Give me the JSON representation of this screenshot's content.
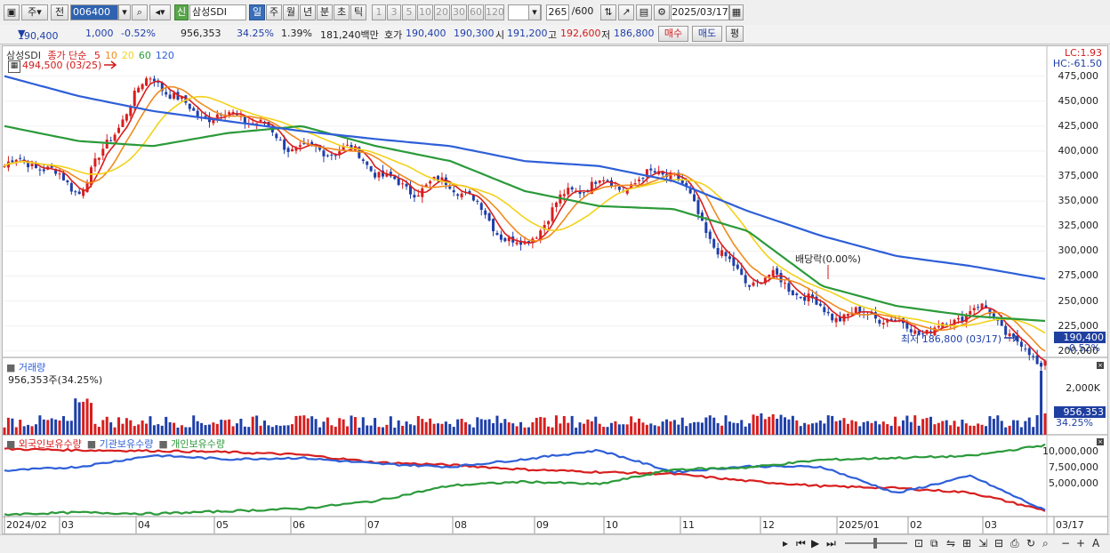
{
  "toolbar": {
    "stock_type": "주",
    "prev_label": "전",
    "code": "006400",
    "name_badge": "신",
    "stock_name": "삼성SDI",
    "periods": [
      "일",
      "주",
      "월",
      "년",
      "분",
      "초",
      "틱"
    ],
    "active_period": "일",
    "intervals": [
      "1",
      "3",
      "5",
      "10",
      "20",
      "30",
      "60",
      "120"
    ],
    "count": "265",
    "count_total": "/600",
    "date": "2025/03/17"
  },
  "quote": {
    "price": "190,400",
    "change": "1,000",
    "change_pct": "-0.52%",
    "volume": "956,353",
    "volume_ratio": "34.25%",
    "turnover_rate": "1.39%",
    "amount": "181,240백만",
    "ask_label": "호가",
    "ask1": "190,400",
    "bid1": "190,300",
    "open_label": "시",
    "open": "191,200",
    "high_label": "고",
    "high": "192,600",
    "low_label": "저",
    "low": "186,800",
    "buy_button": "매수",
    "sell_button": "매도",
    "eval_button": "평"
  },
  "price_pane": {
    "legend_name": "삼성SDI",
    "legend_price": "종가 단순",
    "ma_labels": [
      "5",
      "10",
      "20",
      "60",
      "120"
    ],
    "ma_colors": [
      "#d81e1e",
      "#f08a1e",
      "#f2d21a",
      "#2b9a3a",
      "#2e5fd8"
    ],
    "lc": "LC:1.93",
    "hc": "HC:-61.50",
    "high_marker": "494,500 (03/25)",
    "low_marker": "최저 186,800 (03/17)",
    "dividend_marker": "배당락(0.00%)",
    "current_tag": "190,400",
    "current_pct": "-0.52%",
    "y_ticks": [
      "475,000",
      "450,000",
      "425,000",
      "400,000",
      "375,000",
      "350,000",
      "325,000",
      "300,000",
      "275,000",
      "250,000",
      "225,000",
      "200,000"
    ]
  },
  "volume_pane": {
    "title": "거래량",
    "info": "956,353주(34.25%)",
    "y_tick": "2,000K",
    "current_tag": "956,353",
    "current_pct": "34.25%"
  },
  "holding_pane": {
    "series": [
      "외국인보유수량",
      "기관보유수량",
      "개인보유수량"
    ],
    "series_colors": [
      "#d81e1e",
      "#2e5fd8",
      "#2b9a3a"
    ],
    "y_ticks": [
      "10,000,000",
      "7,500,000",
      "5,000,000"
    ]
  },
  "x_axis": [
    "2024/02",
    "03",
    "04",
    "05",
    "06",
    "07",
    "08",
    "09",
    "10",
    "11",
    "12",
    "2025/01",
    "02",
    "03",
    "03/17"
  ],
  "chart_data": {
    "type": "line",
    "x": [
      "2024/02",
      "2024/03",
      "2024/04",
      "2024/05",
      "2024/06",
      "2024/07",
      "2024/08",
      "2024/09",
      "2024/10",
      "2024/11",
      "2024/12",
      "2025/01",
      "2025/02",
      "2025/03",
      "2025/03/17"
    ],
    "series": [
      {
        "name": "종가",
        "values": [
          385000,
          370000,
          470000,
          430000,
          410000,
          380000,
          360000,
          310000,
          375000,
          370000,
          270000,
          250000,
          220000,
          240000,
          190400
        ]
      },
      {
        "name": "120",
        "values": [
          475000,
          455000,
          440000,
          430000,
          420000,
          412000,
          405000,
          390000,
          385000,
          370000,
          340000,
          315000,
          295000,
          285000,
          272000
        ]
      },
      {
        "name": "60",
        "values": [
          425000,
          410000,
          405000,
          418000,
          425000,
          405000,
          390000,
          360000,
          345000,
          342000,
          320000,
          265000,
          245000,
          235000,
          230000
        ]
      }
    ],
    "volume_last": 956353,
    "ylim": [
      186800,
      494500
    ]
  }
}
